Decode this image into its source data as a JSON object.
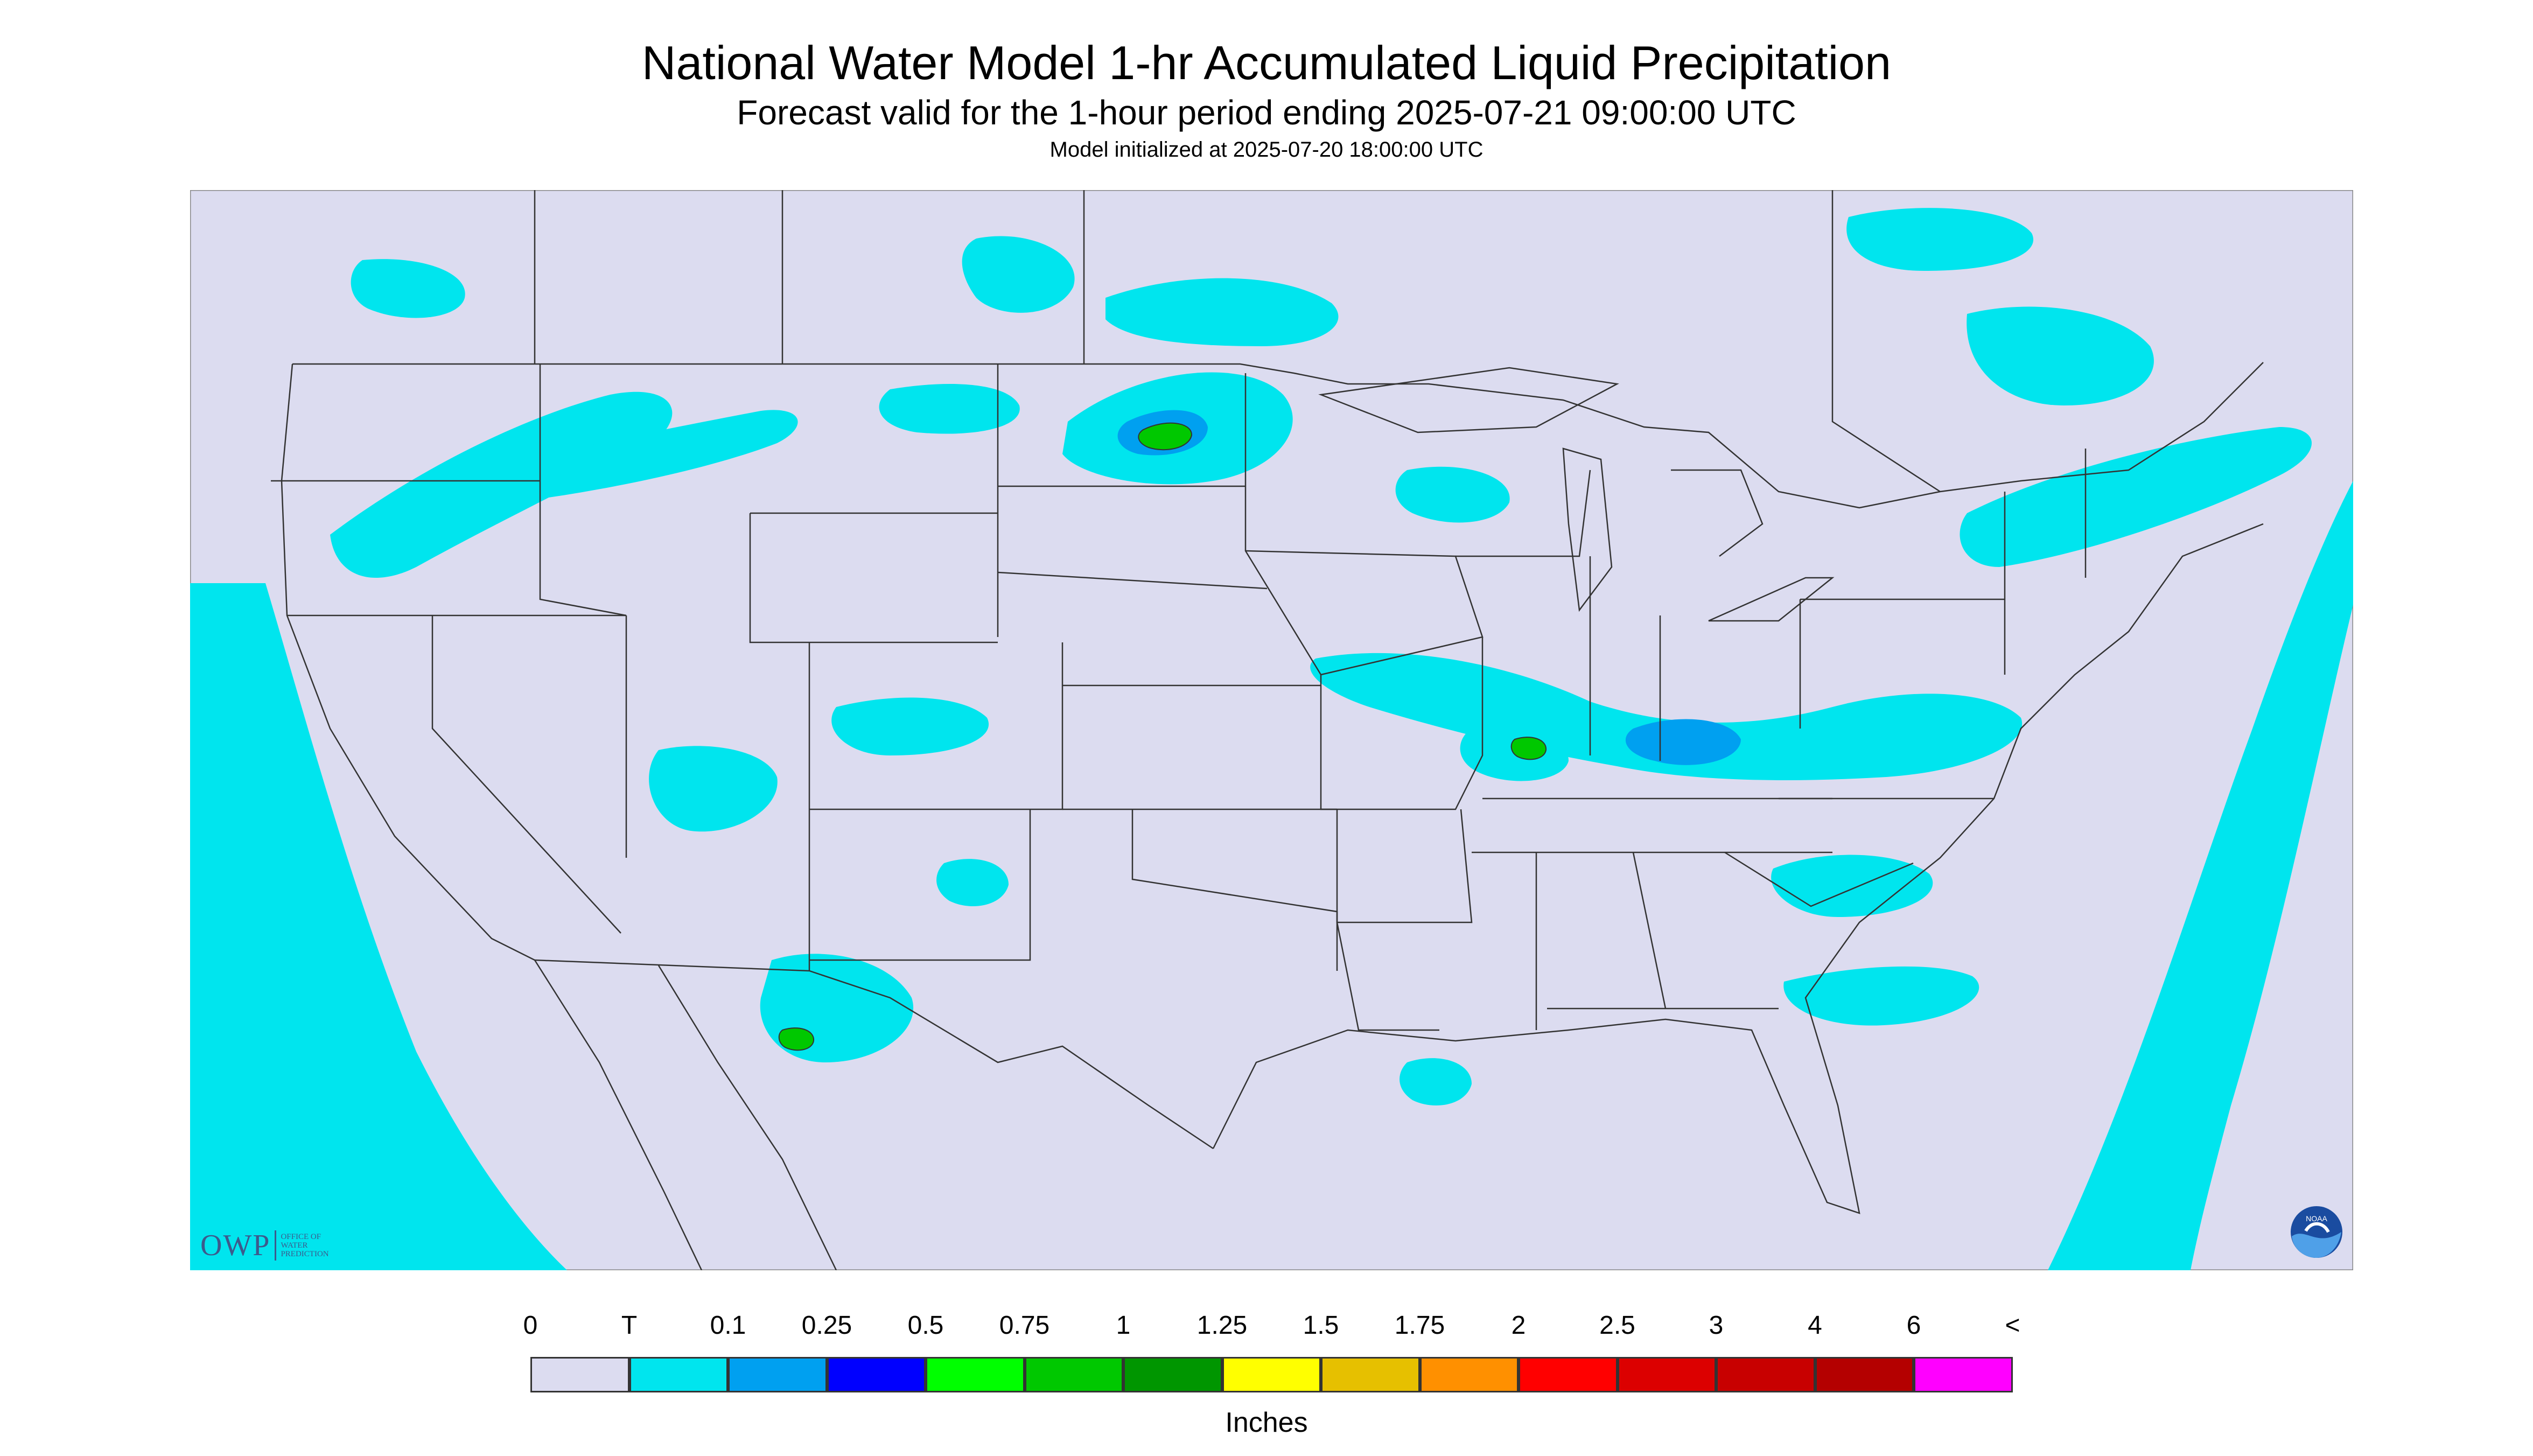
{
  "header": {
    "title": "National Water Model 1-hr Accumulated Liquid Precipitation",
    "subtitle": "Forecast valid for the 1-hour period ending 2025-07-21 09:00:00 UTC",
    "init_line": "Model initialized at 2025-07-20 18:00:00 UTC"
  },
  "map": {
    "background_color": "#dcdcf0",
    "trace_color": "#00e5ee",
    "boundary_color": "#333333"
  },
  "legend": {
    "units_label": "Inches",
    "tick_labels": [
      "0",
      "T",
      "0.1",
      "0.25",
      "0.5",
      "0.75",
      "1",
      "1.25",
      "1.5",
      "1.75",
      "2",
      "2.5",
      "3",
      "4",
      "6",
      "<"
    ],
    "colors": [
      "#dcdcf0",
      "#00e5ee",
      "#00a0f0",
      "#0000ff",
      "#00ff00",
      "#00c800",
      "#009600",
      "#ffff00",
      "#e6c000",
      "#ff9000",
      "#ff0000",
      "#dc0000",
      "#c80000",
      "#b40000",
      "#ff00ff",
      "#9955cc"
    ]
  },
  "logos": {
    "owp_mark": "OWP",
    "owp_text": "OFFICE OF\nWATER\nPREDICTION",
    "noaa_text": "NOAA"
  }
}
